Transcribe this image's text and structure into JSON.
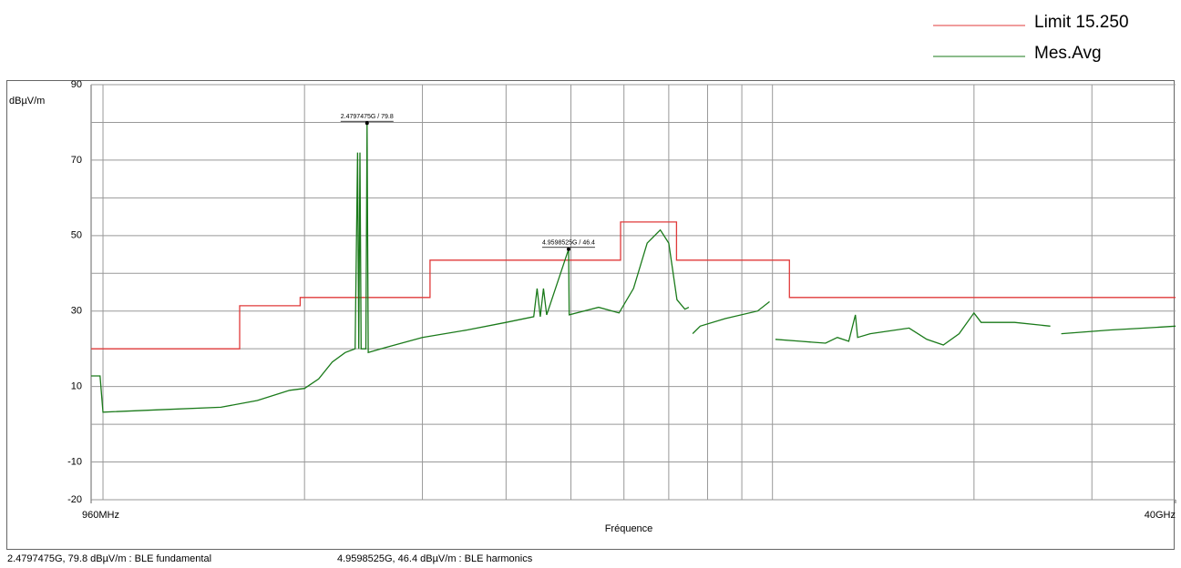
{
  "chart_data": {
    "type": "line",
    "y_label": "dBµV/m",
    "x_label": "Fréquence",
    "xscale": "log",
    "xlim": [
      0.96,
      40
    ],
    "xticks": [
      {
        "value": 0.96,
        "label": "960MHz"
      },
      {
        "value": 40,
        "label": "40GHz"
      }
    ],
    "xgrid": [
      1,
      2,
      3,
      4,
      5,
      6,
      7,
      8,
      9,
      10,
      20,
      30
    ],
    "ylim": [
      -20,
      90
    ],
    "yticks": [
      90,
      70,
      50,
      30,
      10,
      -10,
      -20
    ],
    "ygrid": [
      90,
      80,
      70,
      60,
      50,
      40,
      30,
      20,
      10,
      0,
      -10,
      -20
    ],
    "legend": "top-right",
    "series": [
      {
        "name": "Limit 15.250",
        "color": "#e03a3a",
        "x": [
          0.96,
          1.6,
          1.6,
          1.97,
          1.97,
          3.08,
          3.08,
          5.93,
          5.93,
          7.19,
          7.19,
          10.6,
          10.6,
          40
        ],
        "values": [
          20,
          20,
          31.4,
          31.4,
          33.6,
          33.6,
          43.5,
          43.5,
          53.6,
          53.6,
          43.5,
          43.5,
          33.6,
          33.6
        ]
      },
      {
        "name": "Mes.Avg",
        "color": "#1a7a1a",
        "x": [
          0.96,
          0.99,
          1.0,
          1.2,
          1.5,
          1.7,
          1.9,
          2.0,
          2.1,
          2.2,
          2.3,
          2.38,
          2.4,
          2.41,
          2.42,
          2.43,
          2.47,
          2.4797475,
          2.49,
          2.6,
          3.0,
          3.5,
          4.0,
          4.4,
          4.45,
          4.5,
          4.55,
          4.6,
          4.9598525,
          4.97,
          5.5,
          5.9,
          6.2,
          6.5,
          6.8,
          7.0,
          7.2,
          7.4,
          7.5,
          null,
          7.6,
          7.8,
          8.5,
          9.5,
          9.9,
          null,
          10.1,
          11,
          12,
          12.5,
          13,
          13.3,
          13.4,
          14,
          16,
          17,
          18,
          19,
          20,
          20.5,
          23,
          26,
          null,
          27,
          32,
          36,
          40
        ],
        "values": [
          12.8,
          12.8,
          3.2,
          3.8,
          4.5,
          6.3,
          9,
          9.5,
          12,
          16.5,
          19,
          20,
          72,
          20,
          72,
          20,
          20,
          79.8,
          19,
          20,
          23,
          25,
          27,
          28.5,
          36,
          28.5,
          36,
          29,
          46.4,
          29,
          31,
          29.5,
          36,
          48,
          51.5,
          48,
          33,
          30.5,
          31,
          null,
          24,
          26,
          28,
          30,
          32.5,
          null,
          22.5,
          22,
          21.5,
          23,
          22,
          29,
          23,
          24,
          25.5,
          22.5,
          21,
          24,
          29.5,
          27,
          27,
          26,
          null,
          24,
          25,
          25.5,
          26
        ]
      }
    ],
    "annotations": [
      {
        "x": 2.4797475,
        "y": 79.8,
        "label": "2.4797475G / 79.8"
      },
      {
        "x": 4.9598525,
        "y": 46.4,
        "label": "4.9598525G / 46.4"
      }
    ],
    "notes": [
      "2.4797475G, 79.8 dBµV/m : BLE fundamental",
      "4.9598525G, 46.4 dBµV/m : BLE harmonics"
    ]
  }
}
